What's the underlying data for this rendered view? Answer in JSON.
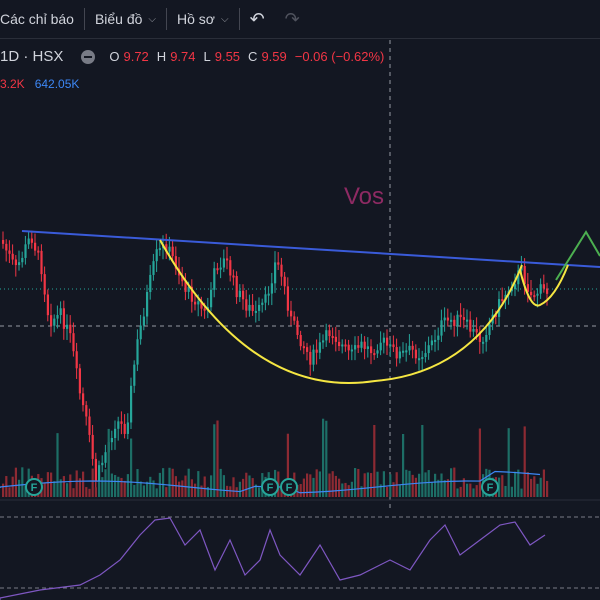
{
  "toolbar": {
    "indicators_label": "Các chỉ báo",
    "chart_label": "Biểu đồ",
    "profile_label": "Hồ sơ"
  },
  "legend": {
    "symbol": "1D · HSX",
    "open_key": "O",
    "open": "9.72",
    "high_key": "H",
    "high": "9.74",
    "low_key": "L",
    "low": "9.55",
    "close_key": "C",
    "close": "9.59",
    "change": "−0.06 (−0.62%)"
  },
  "volume": {
    "value_a": "3.2K",
    "value_b": "642.05K"
  },
  "annotations": {
    "pattern_label": "Vos"
  },
  "event_marker_label": "F",
  "colors": {
    "background": "#131722",
    "up": "#26a69a",
    "down": "#f23645",
    "trendline": "#2962ff",
    "cup": "#f5e642",
    "arrow": "#4caf50",
    "rsi": "#7e57c2"
  },
  "chart_data": {
    "type": "candlestick",
    "legend_values": {
      "open": 9.72,
      "high": 9.74,
      "low": 9.55,
      "close": 9.59
    }
  }
}
